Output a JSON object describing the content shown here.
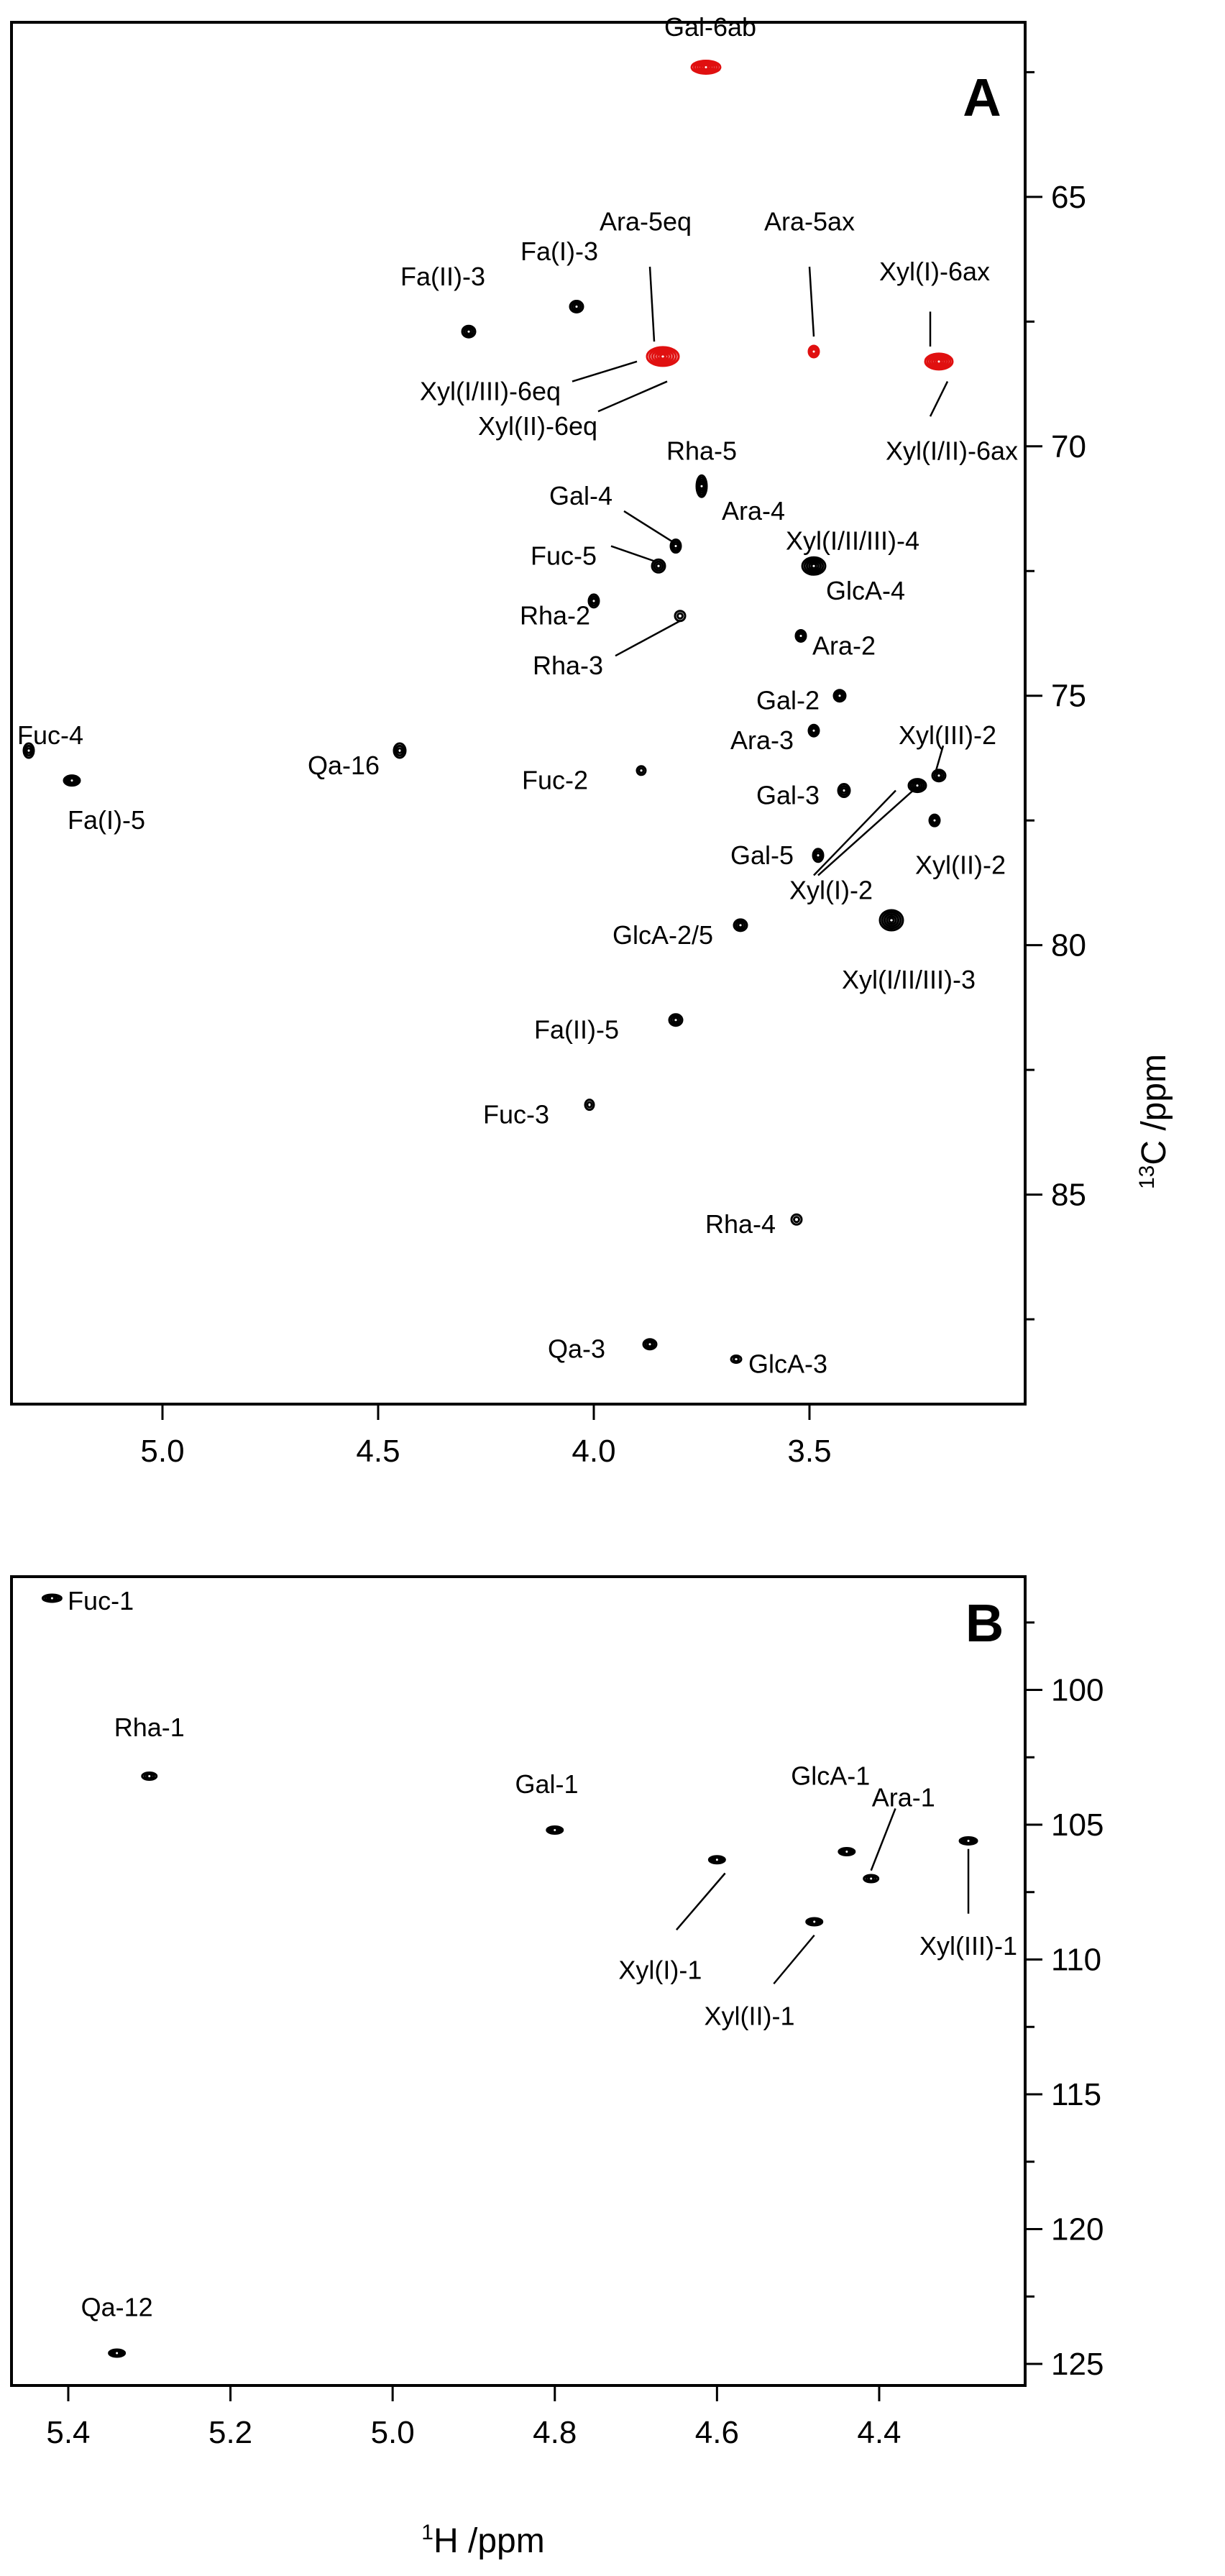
{
  "chart_data": [
    {
      "type": "scatter",
      "panel": "A",
      "xlabel_sup": "1",
      "xlabel": "H /ppm",
      "ylabel_sup": "13",
      "ylabel": "C /ppm",
      "xlim": [
        5.35,
        3.0
      ],
      "ylim": [
        61.5,
        89.2
      ],
      "xticks": [
        5.0,
        4.5,
        4.0,
        3.5
      ],
      "xtick_labels": [
        "5.0",
        "4.5",
        "4.0",
        "3.5"
      ],
      "yticks": [
        65,
        70,
        75,
        80,
        85
      ],
      "ytick_labels": [
        "65",
        "70",
        "75",
        "80",
        "85"
      ],
      "y_minor_ticks": [
        62.5,
        67.5,
        72.5,
        77.5,
        82.5,
        87.5
      ],
      "peaks": [
        {
          "label": "Gal-6ab",
          "x": 3.74,
          "y": 62.4,
          "color": "#e01010",
          "w": 20,
          "h": 9
        },
        {
          "label": "Ara-5eq",
          "x": 3.84,
          "y": 68.2,
          "color": "#e01010",
          "w": 22,
          "h": 13
        },
        {
          "label": "Ara-5ax",
          "x": 3.49,
          "y": 68.1,
          "color": "#e01010",
          "w": 7,
          "h": 8
        },
        {
          "label": "Xyl(I/II)-6ax",
          "x": 3.2,
          "y": 68.3,
          "color": "#e01010",
          "w": 19,
          "h": 11
        },
        {
          "label": "Fa(II)-3",
          "x": 4.29,
          "y": 67.7,
          "color": "#000000",
          "w": 9,
          "h": 8
        },
        {
          "label": "Fa(I)-3",
          "x": 4.04,
          "y": 67.2,
          "color": "#000000",
          "w": 9,
          "h": 8
        },
        {
          "label": "Rha-5 / Ara-4",
          "x": 3.75,
          "y": 70.8,
          "color": "#000000",
          "w": 7,
          "h": 15
        },
        {
          "label": "Gal-4",
          "x": 3.81,
          "y": 72.0,
          "color": "#000000",
          "w": 7,
          "h": 9
        },
        {
          "label": "Fuc-5",
          "x": 3.85,
          "y": 72.4,
          "color": "#000000",
          "w": 9,
          "h": 9
        },
        {
          "label": "Xyl(I/II/III)-4 / GlcA-4",
          "x": 3.49,
          "y": 72.4,
          "color": "#000000",
          "w": 16,
          "h": 12
        },
        {
          "label": "Rha-2",
          "x": 4.0,
          "y": 73.1,
          "color": "#000000",
          "w": 7,
          "h": 9
        },
        {
          "label": "Rha-3",
          "x": 3.8,
          "y": 73.4,
          "color": "#000000",
          "w": 7,
          "h": 7
        },
        {
          "label": "Ara-2",
          "x": 3.52,
          "y": 73.8,
          "color": "#000000",
          "w": 7,
          "h": 8
        },
        {
          "label": "Gal-2",
          "x": 3.43,
          "y": 75.0,
          "color": "#000000",
          "w": 8,
          "h": 8
        },
        {
          "label": "Ara-3",
          "x": 3.49,
          "y": 75.7,
          "color": "#000000",
          "w": 7,
          "h": 8
        },
        {
          "label": "Qa-16",
          "x": 4.45,
          "y": 76.1,
          "color": "#000000",
          "w": 8,
          "h": 10
        },
        {
          "label": "Fuc-4",
          "x": 5.31,
          "y": 76.1,
          "color": "#000000",
          "w": 7,
          "h": 10
        },
        {
          "label": "Fa(I)-5",
          "x": 5.21,
          "y": 76.7,
          "color": "#000000",
          "w": 11,
          "h": 7
        },
        {
          "label": "Fuc-2",
          "x": 3.89,
          "y": 76.5,
          "color": "#000000",
          "w": 6,
          "h": 6
        },
        {
          "label": "Gal-3",
          "x": 3.42,
          "y": 76.9,
          "color": "#000000",
          "w": 8,
          "h": 9
        },
        {
          "label": "Xyl(I)-2",
          "x": 3.25,
          "y": 76.8,
          "color": "#000000",
          "w": 12,
          "h": 9
        },
        {
          "label": "Xyl(III)-2",
          "x": 3.2,
          "y": 76.6,
          "color": "#000000",
          "w": 9,
          "h": 8
        },
        {
          "label": "Xyl(II)-2",
          "x": 3.21,
          "y": 77.5,
          "color": "#000000",
          "w": 7,
          "h": 8
        },
        {
          "label": "Gal-5",
          "x": 3.48,
          "y": 78.2,
          "color": "#000000",
          "w": 7,
          "h": 9
        },
        {
          "label": "GlcA-2/5",
          "x": 3.66,
          "y": 79.6,
          "color": "#000000",
          "w": 9,
          "h": 8
        },
        {
          "label": "Xyl(I/II/III)-3",
          "x": 3.31,
          "y": 79.5,
          "color": "#000000",
          "w": 16,
          "h": 14
        },
        {
          "label": "Fa(II)-5",
          "x": 3.81,
          "y": 81.5,
          "color": "#000000",
          "w": 9,
          "h": 8
        },
        {
          "label": "Fuc-3",
          "x": 4.01,
          "y": 83.2,
          "color": "#000000",
          "w": 6,
          "h": 7
        },
        {
          "label": "Rha-4",
          "x": 3.53,
          "y": 85.5,
          "color": "#000000",
          "w": 7,
          "h": 7
        },
        {
          "label": "Qa-3",
          "x": 3.87,
          "y": 88.0,
          "color": "#000000",
          "w": 9,
          "h": 7
        },
        {
          "label": "GlcA-3",
          "x": 3.67,
          "y": 88.3,
          "color": "#000000",
          "w": 7,
          "h": 5
        }
      ],
      "labels": [
        {
          "text": "A",
          "kind": "panel",
          "x": 3.1,
          "y": 63.0
        },
        {
          "text": "Gal-6ab",
          "x": 3.73,
          "y": 61.6
        },
        {
          "text": "Ara-5eq",
          "x": 3.88,
          "y": 65.5
        },
        {
          "text": "Ara-5ax",
          "x": 3.5,
          "y": 65.5
        },
        {
          "text": "Fa(II)-3",
          "x": 4.35,
          "y": 66.6
        },
        {
          "text": "Fa(I)-3",
          "x": 4.08,
          "y": 66.1
        },
        {
          "text": "Xyl(I)-6ax",
          "x": 3.21,
          "y": 66.5
        },
        {
          "text": "Xyl(I/III)-6eq",
          "x": 4.24,
          "y": 68.9
        },
        {
          "text": "Xyl(II)-6eq",
          "x": 4.13,
          "y": 69.6
        },
        {
          "text": "Xyl(I/II)-6ax",
          "x": 3.17,
          "y": 70.1
        },
        {
          "text": "Rha-5",
          "x": 3.75,
          "y": 70.1
        },
        {
          "text": "Ara-4",
          "x": 3.63,
          "y": 71.3
        },
        {
          "text": "Gal-4",
          "x": 4.03,
          "y": 71.0
        },
        {
          "text": "Xyl(I/II/III)-4",
          "x": 3.4,
          "y": 71.9
        },
        {
          "text": "Fuc-5",
          "x": 4.07,
          "y": 72.2
        },
        {
          "text": "GlcA-4",
          "x": 3.37,
          "y": 72.9
        },
        {
          "text": "Rha-2",
          "x": 4.09,
          "y": 73.4
        },
        {
          "text": "Ara-2",
          "x": 3.42,
          "y": 74.0
        },
        {
          "text": "Rha-3",
          "x": 4.06,
          "y": 74.4
        },
        {
          "text": "Gal-2",
          "x": 3.55,
          "y": 75.1
        },
        {
          "text": "Fuc-4",
          "x": 5.26,
          "y": 75.8
        },
        {
          "text": "Ara-3",
          "x": 3.61,
          "y": 75.9
        },
        {
          "text": "Xyl(III)-2",
          "x": 3.18,
          "y": 75.8
        },
        {
          "text": "Qa-16",
          "x": 4.58,
          "y": 76.4
        },
        {
          "text": "Fuc-2",
          "x": 4.09,
          "y": 76.7
        },
        {
          "text": "Fa(I)-5",
          "x": 5.13,
          "y": 77.5
        },
        {
          "text": "Gal-3",
          "x": 3.55,
          "y": 77.0
        },
        {
          "text": "Gal-5",
          "x": 3.61,
          "y": 78.2
        },
        {
          "text": "Xyl(II)-2",
          "x": 3.15,
          "y": 78.4
        },
        {
          "text": "Xyl(I)-2",
          "x": 3.45,
          "y": 78.9
        },
        {
          "text": "GlcA-2/5",
          "x": 3.84,
          "y": 79.8
        },
        {
          "text": "Xyl(I/II/III)-3",
          "x": 3.27,
          "y": 80.7
        },
        {
          "text": "Fa(II)-5",
          "x": 4.04,
          "y": 81.7
        },
        {
          "text": "Fuc-3",
          "x": 4.18,
          "y": 83.4
        },
        {
          "text": "Rha-4",
          "x": 3.66,
          "y": 85.6
        },
        {
          "text": "Qa-3",
          "x": 4.04,
          "y": 88.1
        },
        {
          "text": "GlcA-3",
          "x": 3.55,
          "y": 88.4
        }
      ],
      "leaders": [
        {
          "label": "Ara-5eq",
          "from": [
            3.87,
            66.4
          ],
          "to": [
            3.86,
            67.9
          ]
        },
        {
          "label": "Ara-5ax",
          "from": [
            3.5,
            66.4
          ],
          "to": [
            3.49,
            67.8
          ]
        },
        {
          "label": "Xyl(I)-6ax",
          "from": [
            3.22,
            67.3
          ],
          "to": [
            3.22,
            68.0
          ]
        },
        {
          "label": "Xyl(I/III)-6eq",
          "from": [
            4.05,
            68.7
          ],
          "to": [
            3.9,
            68.3
          ]
        },
        {
          "label": "Xyl(II)-6eq",
          "from": [
            3.99,
            69.3
          ],
          "to": [
            3.83,
            68.7
          ]
        },
        {
          "label": "Xyl(I/II)-6ax",
          "from": [
            3.22,
            69.4
          ],
          "to": [
            3.18,
            68.7
          ]
        },
        {
          "label": "Gal-4",
          "from": [
            3.93,
            71.3
          ],
          "to": [
            3.82,
            71.9
          ]
        },
        {
          "label": "Fuc-5",
          "from": [
            3.96,
            72.0
          ],
          "to": [
            3.86,
            72.3
          ]
        },
        {
          "label": "Rha-3",
          "from": [
            3.95,
            74.2
          ],
          "to": [
            3.8,
            73.5
          ]
        },
        {
          "label": "Xyl(III)-2",
          "from": [
            3.19,
            76.0
          ],
          "to": [
            3.21,
            76.6
          ]
        },
        {
          "label": "Xyl(I)-2",
          "from": [
            3.49,
            78.6
          ],
          "to": [
            3.3,
            76.9
          ]
        },
        {
          "label": "Xyl(I)-2",
          "from": [
            3.48,
            78.6
          ],
          "to": [
            3.26,
            76.9
          ]
        }
      ]
    },
    {
      "type": "scatter",
      "panel": "B",
      "xlabel_sup": "1",
      "xlabel": "H /ppm",
      "ylim": [
        95.8,
        125.8
      ],
      "xlim": [
        5.47,
        4.22
      ],
      "xticks": [
        5.4,
        5.2,
        5.0,
        4.8,
        4.6,
        4.4
      ],
      "xtick_labels": [
        "5.4",
        "5.2",
        "5.0",
        "4.8",
        "4.6",
        "4.4"
      ],
      "yticks": [
        100,
        105,
        110,
        115,
        120,
        125
      ],
      "ytick_labels": [
        "100",
        "105",
        "110",
        "115",
        "120",
        "125"
      ],
      "y_minor_ticks": [
        97.5,
        102.5,
        107.5,
        112.5,
        117.5,
        122.5
      ],
      "peaks": [
        {
          "label": "Fuc-1",
          "x": 5.42,
          "y": 96.6,
          "color": "#000000",
          "w": 13,
          "h": 5
        },
        {
          "label": "Rha-1",
          "x": 5.3,
          "y": 103.2,
          "color": "#000000",
          "w": 10,
          "h": 5
        },
        {
          "label": "Gal-1",
          "x": 4.8,
          "y": 105.2,
          "color": "#000000",
          "w": 11,
          "h": 5
        },
        {
          "label": "Xyl(I)-1",
          "x": 4.6,
          "y": 106.3,
          "color": "#000000",
          "w": 11,
          "h": 5
        },
        {
          "label": "GlcA-1",
          "x": 4.44,
          "y": 106.0,
          "color": "#000000",
          "w": 11,
          "h": 5
        },
        {
          "label": "Ara-1",
          "x": 4.41,
          "y": 107.0,
          "color": "#000000",
          "w": 10,
          "h": 5
        },
        {
          "label": "Xyl(II)-1",
          "x": 4.48,
          "y": 108.6,
          "color": "#000000",
          "w": 11,
          "h": 5
        },
        {
          "label": "Xyl(III)-1",
          "x": 4.29,
          "y": 105.6,
          "color": "#000000",
          "w": 12,
          "h": 5
        },
        {
          "label": "Qa-12",
          "x": 5.34,
          "y": 124.6,
          "color": "#000000",
          "w": 11,
          "h": 5
        }
      ],
      "labels": [
        {
          "text": "B",
          "kind": "panel",
          "x": 4.27,
          "y": 97.5
        },
        {
          "text": "Fuc-1",
          "x": 5.36,
          "y": 96.7
        },
        {
          "text": "Rha-1",
          "x": 5.3,
          "y": 101.4
        },
        {
          "text": "Gal-1",
          "x": 4.81,
          "y": 103.5
        },
        {
          "text": "GlcA-1",
          "x": 4.46,
          "y": 103.2
        },
        {
          "text": "Ara-1",
          "x": 4.37,
          "y": 104.0
        },
        {
          "text": "Xyl(I)-1",
          "x": 4.67,
          "y": 110.4
        },
        {
          "text": "Xyl(III)-1",
          "x": 4.29,
          "y": 109.5
        },
        {
          "text": "Xyl(II)-1",
          "x": 4.56,
          "y": 112.1
        },
        {
          "text": "Qa-12",
          "x": 5.34,
          "y": 122.9
        }
      ],
      "leaders": [
        {
          "label": "Xyl(I)-1",
          "from": [
            4.65,
            108.9
          ],
          "to": [
            4.59,
            106.8
          ]
        },
        {
          "label": "Xyl(II)-1",
          "from": [
            4.53,
            110.9
          ],
          "to": [
            4.48,
            109.1
          ]
        },
        {
          "label": "Ara-1",
          "from": [
            4.38,
            104.4
          ],
          "to": [
            4.41,
            106.7
          ]
        },
        {
          "label": "Xyl(III)-1",
          "from": [
            4.29,
            108.3
          ],
          "to": [
            4.29,
            105.9
          ]
        }
      ]
    }
  ]
}
